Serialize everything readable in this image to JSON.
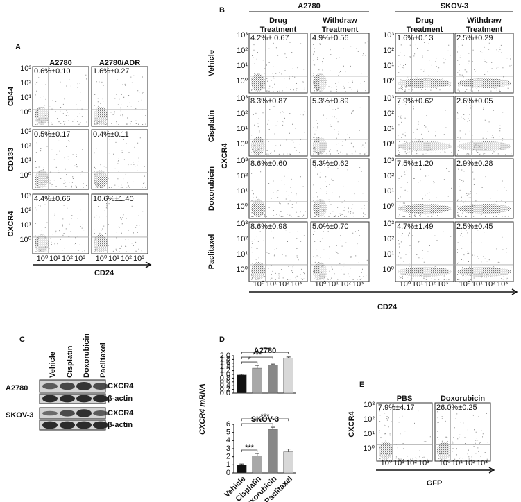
{
  "figure": {
    "panel_a": {
      "label": "A",
      "columns": [
        "A2780",
        "A2780/ADR"
      ],
      "rows": [
        {
          "marker": "CD44",
          "values": [
            "0.6%±0.10",
            "1.6%±0.27"
          ]
        },
        {
          "marker": "CD133",
          "values": [
            "0.5%±0.17",
            "0.4%±0.11"
          ]
        },
        {
          "marker": "CXCR4",
          "values": [
            "4.4%±0.66",
            "10.6%±1.40"
          ]
        }
      ],
      "ticks": [
        "10⁰",
        "10¹",
        "10²",
        "10³"
      ],
      "x_label": "CD24"
    },
    "panel_b": {
      "label": "B",
      "groups": [
        {
          "name": "A2780",
          "columns": [
            [
              "Drug",
              "Treatment"
            ],
            [
              "Withdraw",
              "Treatment"
            ]
          ]
        },
        {
          "name": "SKOV-3",
          "columns": [
            [
              "Drug",
              "Treatment"
            ],
            [
              "Withdraw",
              "Treatment"
            ]
          ]
        }
      ],
      "rows": [
        {
          "treatment": "Vehicle",
          "values": [
            "4.2%± 0.67",
            "4.9%±0.56",
            "1.6%±0.13",
            "2.5%±0.29"
          ]
        },
        {
          "treatment": "Cisplatin",
          "values": [
            "8.3%±0.87",
            "5.3%±0.89",
            "7.9%±0.62",
            "2.6%±0.05"
          ]
        },
        {
          "treatment": "Doxorubicin",
          "values": [
            "8.6%±0.60",
            "5.3%±0.62",
            "7.5%±1.20",
            "2.9%±0.28"
          ]
        },
        {
          "treatment": "Paclitaxel",
          "values": [
            "8.6%±0.98",
            "5.0%±0.70",
            "4.7%±1.49",
            "2.5%±0.45"
          ]
        }
      ],
      "ticks": [
        "10⁰",
        "10¹",
        "10²",
        "10³"
      ],
      "y_label": "CXCR4",
      "x_label": "CD24"
    },
    "panel_c": {
      "label": "C",
      "lanes": [
        "Vehicle",
        "Cisplatin",
        "Doxorubicin",
        "Paclitaxel"
      ],
      "cell_lines": [
        {
          "name": "A2780",
          "bands": [
            "CXCR4",
            "β-actin"
          ]
        },
        {
          "name": "SKOV-3",
          "bands": [
            "CXCR4",
            "β-actin"
          ]
        }
      ]
    },
    "panel_d": {
      "label": "D",
      "y_label": "CXCR4 mRNA"
    },
    "panel_e": {
      "label": "E",
      "columns": [
        "PBS",
        "Doxorubicin"
      ],
      "values": [
        "7.9%±4.17",
        "26.0%±0.25"
      ],
      "ticks": [
        "10⁰",
        "10¹",
        "10²",
        "10³"
      ],
      "y_label": "CXCR4",
      "x_label": "GFP"
    }
  },
  "chart_data": [
    {
      "type": "bar",
      "title": "A2780",
      "categories": [
        "Vehicle",
        "Cisplatin",
        "Doxorubicin",
        "Paclitaxel"
      ],
      "values": [
        0.97,
        1.33,
        1.5,
        1.87
      ],
      "errors": [
        0.04,
        0.15,
        0.05,
        0.06
      ],
      "colors": [
        "#111111",
        "#a8a8a8",
        "#888888",
        "#d8d8d8"
      ],
      "ylim": [
        0,
        2.0
      ],
      "yticks": [
        {
          "value": 0,
          "label": "0.0"
        },
        {
          "value": 0.2,
          "label": "0.2"
        },
        {
          "value": 0.4,
          "label": "0.4"
        },
        {
          "value": 0.6,
          "label": "0.6"
        },
        {
          "value": 0.8,
          "label": "0.8"
        },
        {
          "value": 1.0,
          "label": "1.0"
        },
        {
          "value": 1.2,
          "label": "1.2"
        },
        {
          "value": 1.4,
          "label": "1.4"
        },
        {
          "value": 1.6,
          "label": "1.6"
        },
        {
          "value": 1.8,
          "label": "1.8"
        },
        {
          "value": 2.0,
          "label": "2.0"
        }
      ],
      "brackets": [
        {
          "label": "*",
          "to": "Cisplatin"
        },
        {
          "label": "***",
          "to": "Doxorubicin"
        },
        {
          "label": "***",
          "to": "Paclitaxel"
        }
      ]
    },
    {
      "type": "bar",
      "title": "SKOV-3",
      "categories": [
        "Vehicle",
        "Cisplatin",
        "Doxorubicin",
        "Paclitaxel"
      ],
      "values": [
        1.0,
        2.1,
        5.4,
        2.6
      ],
      "errors": [
        0.1,
        0.3,
        0.25,
        0.35
      ],
      "colors": [
        "#111111",
        "#a8a8a8",
        "#888888",
        "#d8d8d8"
      ],
      "ylim": [
        0,
        6
      ],
      "yticks": [
        0,
        1,
        2,
        3,
        4,
        5,
        6
      ],
      "brackets": [
        {
          "label": "***",
          "to": "Cisplatin"
        },
        {
          "label": "***",
          "to": "Doxorubicin"
        },
        {
          "label": "***",
          "to": "Paclitaxel"
        }
      ]
    }
  ]
}
